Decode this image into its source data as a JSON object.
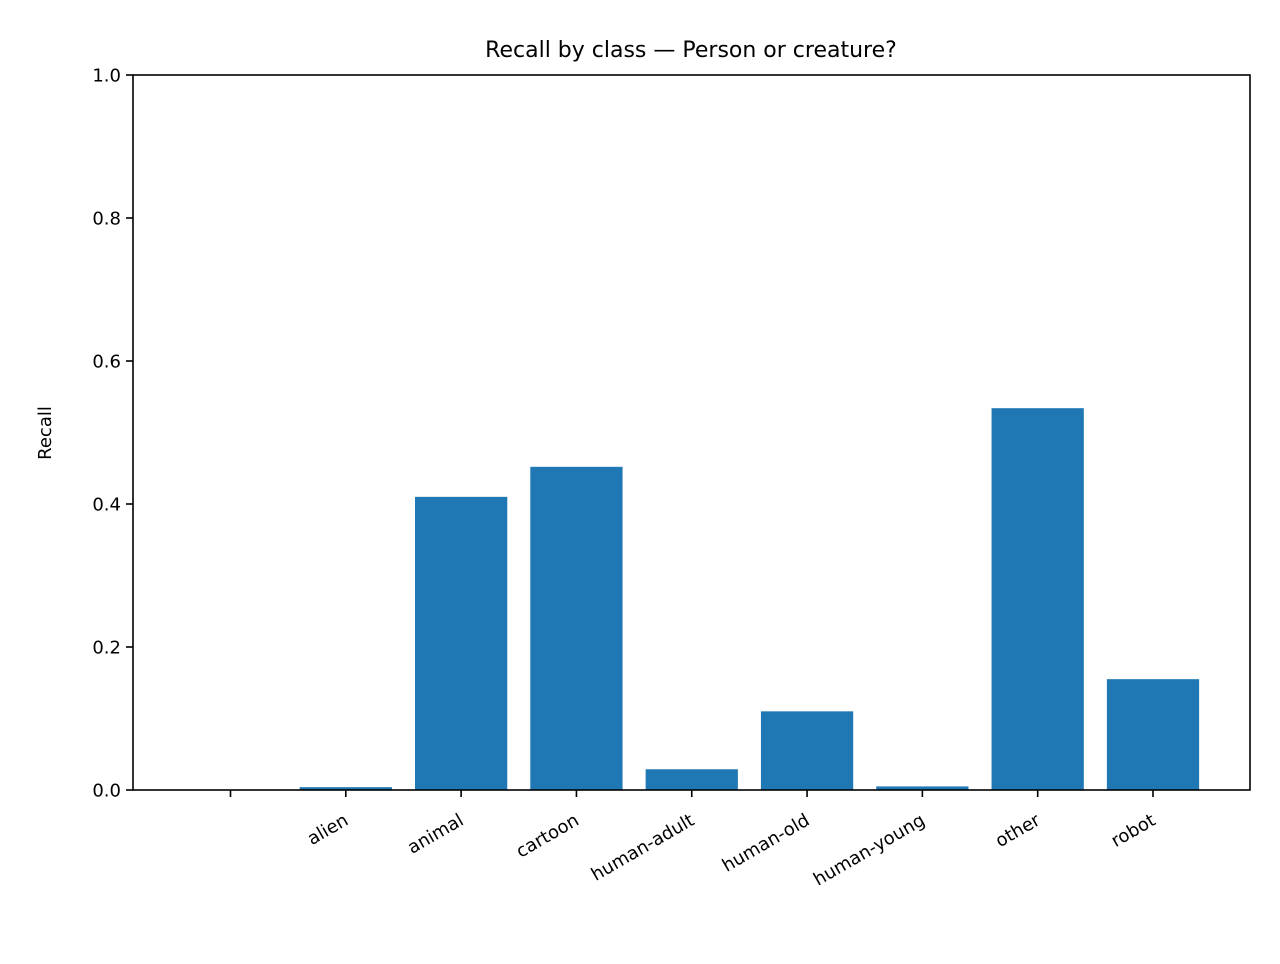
{
  "chart_data": {
    "type": "bar",
    "title": "Recall by class — Person or creature?",
    "xlabel": "",
    "ylabel": "Recall",
    "categories": [
      "",
      "alien",
      "animal",
      "cartoon",
      "human-adult",
      "human-old",
      "human-young",
      "other",
      "robot"
    ],
    "values": [
      0.0,
      0.004,
      0.41,
      0.452,
      0.029,
      0.11,
      0.005,
      0.534,
      0.155
    ],
    "ylim": [
      0,
      1.0
    ],
    "yticks": [
      "0.0",
      "0.2",
      "0.4",
      "0.6",
      "0.8",
      "1.0"
    ],
    "grid": false,
    "legend": "none",
    "bar_color": "#1f77b4"
  }
}
